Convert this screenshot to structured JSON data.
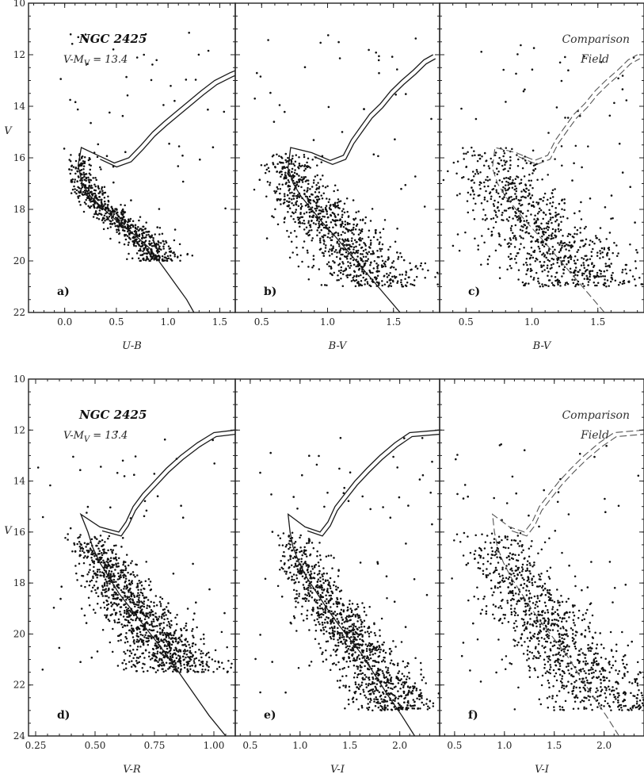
{
  "chart_data": [
    {
      "id": "a",
      "type": "scatter",
      "panel_label": "a)",
      "title": "NGC 2425",
      "subtitle": "V-M",
      "subtitle_sub": "V",
      "subtitle_value": " = 13.4",
      "xlabel": "U-B",
      "ylabel": "V",
      "xlim": [
        -0.35,
        1.65
      ],
      "ylim": [
        22,
        10
      ],
      "xticks": [
        0.0,
        0.5,
        1.0,
        1.5
      ],
      "xticklabels": [
        "0.0",
        "0.5",
        "1.0",
        "1.5"
      ],
      "yticks": [
        10,
        12,
        14,
        16,
        18,
        20,
        22
      ],
      "yticklabels": [
        "10",
        "12",
        "14",
        "16",
        "18",
        "20",
        "22"
      ],
      "series": [
        {
          "kind": "isochrone",
          "style": "solid",
          "x": [
            1.25,
            1.18,
            1.09,
            1.0,
            0.91,
            0.82,
            0.68,
            0.52,
            0.38,
            0.25,
            0.17,
            0.13,
            0.16,
            0.32,
            0.48,
            0.62,
            0.74,
            0.85,
            0.96,
            1.08,
            1.2,
            1.32,
            1.45,
            1.6,
            1.72
          ],
          "y": [
            22.0,
            21.5,
            21.0,
            20.5,
            20.0,
            19.5,
            19.0,
            18.5,
            18.0,
            17.5,
            17.0,
            16.3,
            15.6,
            15.9,
            16.2,
            16.0,
            15.5,
            15.0,
            14.6,
            14.2,
            13.8,
            13.4,
            13.0,
            12.7,
            12.5
          ]
        }
      ],
      "field": {
        "count": 700,
        "seed": 11,
        "x_lo": 0.13,
        "x_hi": 0.22,
        "v_min": 15.8,
        "v_max": 20.0,
        "spread": 0.07,
        "bg": 55,
        "bg_v": [
          11.0,
          19.0
        ],
        "bg_x": [
          -0.25,
          1.6
        ]
      }
    },
    {
      "id": "b",
      "type": "scatter",
      "panel_label": "b)",
      "xlabel": "B-V",
      "xlim": [
        0.3,
        1.85
      ],
      "ylim": [
        22,
        10
      ],
      "xticks": [
        0.5,
        1.0,
        1.5
      ],
      "xticklabels": [
        "0.5",
        "1.0",
        "1.5"
      ],
      "yticks": [
        10,
        12,
        14,
        16,
        18,
        20,
        22
      ],
      "series": [
        {
          "kind": "isochrone",
          "style": "solid",
          "x": [
            1.55,
            1.45,
            1.35,
            1.25,
            1.15,
            1.05,
            0.96,
            0.88,
            0.8,
            0.74,
            0.7,
            0.72,
            0.88,
            1.02,
            1.12,
            1.18,
            1.25,
            1.32,
            1.4,
            1.48,
            1.56,
            1.65,
            1.73,
            1.8
          ],
          "y": [
            22.0,
            21.4,
            20.8,
            20.2,
            19.6,
            19.0,
            18.5,
            18.0,
            17.5,
            17.0,
            16.4,
            15.6,
            15.8,
            16.1,
            15.9,
            15.3,
            14.8,
            14.3,
            13.9,
            13.4,
            13.0,
            12.6,
            12.2,
            12.0
          ]
        }
      ],
      "field": {
        "count": 900,
        "seed": 22,
        "x_lo": 0.7,
        "x_hi": 1.6,
        "v_min": 15.8,
        "v_max": 21.0,
        "spread": 0.12,
        "bg": 60,
        "bg_v": [
          11.0,
          20.0
        ],
        "bg_x": [
          0.4,
          1.8
        ]
      }
    },
    {
      "id": "c",
      "type": "scatter",
      "panel_label": "c)",
      "title": "Comparison",
      "title2": "Field",
      "xlabel": "B-V",
      "xlim": [
        0.3,
        1.85
      ],
      "ylim": [
        22,
        10
      ],
      "xticks": [
        0.5,
        1.0,
        1.5
      ],
      "xticklabels": [
        "0.5",
        "1.0",
        "1.5"
      ],
      "yticks": [
        10,
        12,
        14,
        16,
        18,
        20,
        22
      ],
      "series": [
        {
          "kind": "isochrone",
          "style": "dashed",
          "x": [
            1.55,
            1.45,
            1.35,
            1.25,
            1.15,
            1.05,
            0.96,
            0.88,
            0.8,
            0.74,
            0.7,
            0.72,
            0.88,
            1.02,
            1.12,
            1.18,
            1.25,
            1.32,
            1.4,
            1.48,
            1.56,
            1.65,
            1.73,
            1.8
          ],
          "y": [
            22.0,
            21.4,
            20.8,
            20.2,
            19.6,
            19.0,
            18.5,
            18.0,
            17.5,
            17.0,
            16.4,
            15.6,
            15.8,
            16.1,
            15.9,
            15.3,
            14.8,
            14.3,
            13.9,
            13.4,
            13.0,
            12.6,
            12.2,
            12.0
          ]
        }
      ],
      "field": {
        "count": 850,
        "seed": 33,
        "x_lo": 0.7,
        "x_hi": 1.6,
        "v_min": 15.5,
        "v_max": 21.0,
        "spread": 0.17,
        "bg": 70,
        "bg_v": [
          11.5,
          20.5
        ],
        "bg_x": [
          0.4,
          1.8
        ]
      }
    },
    {
      "id": "d",
      "type": "scatter",
      "panel_label": "d)",
      "title": "NGC 2425",
      "subtitle": "V-M",
      "subtitle_sub": "V",
      "subtitle_value": " = 13.4",
      "xlabel": "V-R",
      "ylabel": "V",
      "xlim": [
        0.22,
        1.09
      ],
      "ylim": [
        24,
        10
      ],
      "xticks": [
        0.25,
        0.5,
        0.75,
        1.0
      ],
      "xticklabels": [
        "0.25",
        "0.50",
        "0.75",
        "1.00"
      ],
      "yticks": [
        10,
        12,
        14,
        16,
        18,
        20,
        22,
        24
      ],
      "yticklabels": [
        "10",
        "12",
        "14",
        "16",
        "18",
        "20",
        "22",
        "24"
      ],
      "series": [
        {
          "kind": "isochrone",
          "style": "solid",
          "x": [
            1.05,
            0.98,
            0.92,
            0.86,
            0.8,
            0.75,
            0.7,
            0.65,
            0.6,
            0.56,
            0.52,
            0.49,
            0.47,
            0.44,
            0.52,
            0.6,
            0.63,
            0.66,
            0.7,
            0.75,
            0.8,
            0.86,
            0.93,
            1.0,
            1.09
          ],
          "y": [
            24.0,
            23.2,
            22.4,
            21.6,
            20.8,
            20.2,
            19.6,
            19.0,
            18.4,
            17.8,
            17.2,
            16.6,
            16.0,
            15.3,
            15.8,
            16.0,
            15.6,
            15.0,
            14.5,
            14.0,
            13.5,
            13.0,
            12.5,
            12.1,
            12.0
          ]
        }
      ],
      "field": {
        "count": 1100,
        "seed": 44,
        "x_lo": 0.47,
        "x_hi": 0.98,
        "v_min": 16.0,
        "v_max": 21.5,
        "spread": 0.06,
        "bg": 70,
        "bg_v": [
          12.0,
          21.5
        ],
        "bg_x": [
          0.24,
          1.05
        ]
      }
    },
    {
      "id": "e",
      "type": "scatter",
      "panel_label": "e)",
      "xlabel": "V-I",
      "xlim": [
        0.35,
        2.4
      ],
      "ylim": [
        24,
        10
      ],
      "xticks": [
        0.5,
        1.0,
        1.5,
        2.0
      ],
      "xticklabels": [
        "0.5",
        "1.0",
        "1.5",
        "2.0"
      ],
      "yticks": [
        10,
        12,
        14,
        16,
        18,
        20,
        22,
        24
      ],
      "series": [
        {
          "kind": "isochrone",
          "style": "solid",
          "x": [
            2.15,
            2.02,
            1.88,
            1.75,
            1.62,
            1.5,
            1.38,
            1.27,
            1.17,
            1.07,
            0.99,
            0.93,
            0.9,
            0.88,
            1.05,
            1.2,
            1.28,
            1.35,
            1.45,
            1.55,
            1.67,
            1.8,
            1.95,
            2.1,
            2.4
          ],
          "y": [
            24.0,
            23.2,
            22.4,
            21.6,
            20.8,
            20.2,
            19.6,
            19.0,
            18.4,
            17.8,
            17.2,
            16.6,
            16.0,
            15.3,
            15.8,
            16.0,
            15.6,
            15.0,
            14.5,
            14.0,
            13.5,
            13.0,
            12.5,
            12.1,
            12.0
          ]
        }
      ],
      "field": {
        "count": 1100,
        "seed": 55,
        "x_lo": 0.93,
        "x_hi": 2.3,
        "v_min": 16.0,
        "v_max": 23.0,
        "spread": 0.13,
        "bg": 70,
        "bg_v": [
          12.0,
          23.0
        ],
        "bg_x": [
          0.5,
          2.35
        ]
      }
    },
    {
      "id": "f",
      "type": "scatter",
      "panel_label": "f)",
      "title": "Comparison",
      "title2": "Field",
      "xlabel": "V-I",
      "xlim": [
        0.35,
        2.4
      ],
      "ylim": [
        24,
        10
      ],
      "xticks": [
        0.5,
        1.0,
        1.5,
        2.0
      ],
      "xticklabels": [
        "0.5",
        "1.0",
        "1.5",
        "2.0"
      ],
      "yticks": [
        10,
        12,
        14,
        16,
        18,
        20,
        22,
        24
      ],
      "series": [
        {
          "kind": "isochrone",
          "style": "dashed",
          "x": [
            2.15,
            2.02,
            1.88,
            1.75,
            1.62,
            1.5,
            1.38,
            1.27,
            1.17,
            1.07,
            0.99,
            0.93,
            0.9,
            0.88,
            1.05,
            1.2,
            1.28,
            1.35,
            1.45,
            1.55,
            1.67,
            1.8,
            1.95,
            2.1,
            2.4
          ],
          "y": [
            24.0,
            23.2,
            22.4,
            21.6,
            20.8,
            20.2,
            19.6,
            19.0,
            18.4,
            17.8,
            17.2,
            16.6,
            16.0,
            15.3,
            15.8,
            16.0,
            15.6,
            15.0,
            14.5,
            14.0,
            13.5,
            13.0,
            12.5,
            12.1,
            12.0
          ]
        }
      ],
      "field": {
        "count": 1000,
        "seed": 66,
        "x_lo": 1.0,
        "x_hi": 2.3,
        "v_min": 16.0,
        "v_max": 23.0,
        "spread": 0.2,
        "bg": 80,
        "bg_v": [
          12.5,
          23.0
        ],
        "bg_x": [
          0.5,
          2.35
        ]
      }
    }
  ]
}
